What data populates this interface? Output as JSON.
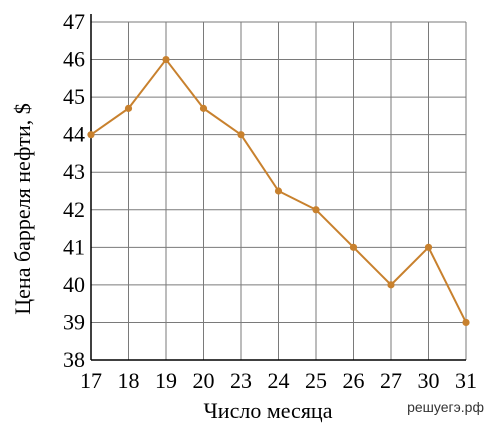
{
  "chart_data": {
    "type": "line",
    "xlabel": "Число месяца",
    "ylabel": "Цена барреля нефти, $",
    "categories": [
      "17",
      "18",
      "19",
      "20",
      "23",
      "24",
      "25",
      "26",
      "27",
      "30",
      "31"
    ],
    "series": [
      {
        "values": [
          44,
          44.7,
          46,
          44.7,
          44,
          42.5,
          42,
          41,
          40,
          41,
          39
        ]
      }
    ],
    "yticks": [
      38,
      39,
      40,
      41,
      42,
      43,
      44,
      45,
      46,
      47
    ],
    "ylim": [
      38,
      47
    ],
    "grid": true,
    "line_color": "#c8812e",
    "marker_color": "#c8812e"
  },
  "watermark": "решуегэ.рф"
}
